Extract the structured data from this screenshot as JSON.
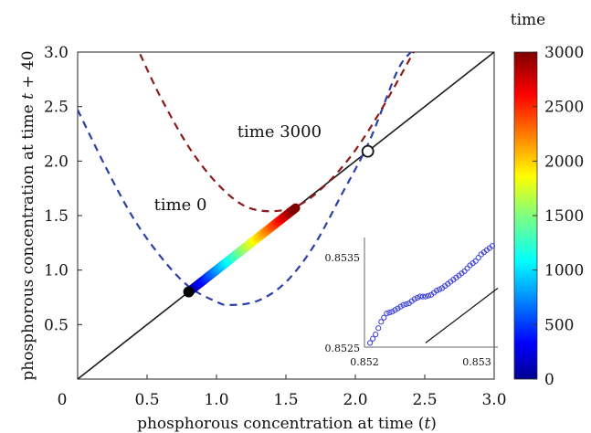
{
  "chart_data": {
    "type": "line",
    "xlabel_main": "phosphorous concentration at time",
    "xlabel_var": "t",
    "ylabel_main": "phosphorous concentration at time",
    "ylabel_var": "t",
    "ylabel_suffix": "+ 40",
    "xlim": [
      0,
      3.0
    ],
    "ylim": [
      0,
      3.0
    ],
    "x_ticks": [
      0.5,
      1.0,
      1.5,
      2.0,
      2.5,
      3.0
    ],
    "y_ticks": [
      0.5,
      1.0,
      1.5,
      2.0,
      2.5,
      3.0
    ],
    "origin_label": "0",
    "tick_labels": {
      "0.5": "0.5",
      "1.0": "1.0",
      "1.5": "1.5",
      "2.0": "2.0",
      "2.5": "2.5",
      "3.0": "3.0"
    },
    "grid": false,
    "identity_line": {
      "x": [
        0,
        3.0
      ],
      "y": [
        0,
        3.0
      ],
      "color": "#1a1a1a"
    },
    "series": [
      {
        "color": "#2b3fa8",
        "style": "dashed",
        "x": [
          0.0,
          0.2,
          0.4,
          0.6,
          0.8,
          1.0,
          1.1,
          1.3,
          1.5,
          1.7,
          1.9,
          2.1,
          2.3,
          2.4
        ],
        "y": [
          2.47,
          1.95,
          1.48,
          1.12,
          0.85,
          0.71,
          0.68,
          0.72,
          0.89,
          1.22,
          1.69,
          2.18,
          2.82,
          3.0
        ]
      },
      {
        "color": "#8b1a1a",
        "style": "dashed",
        "x": [
          0.45,
          0.6,
          0.8,
          1.0,
          1.2,
          1.4,
          1.6,
          1.8,
          2.0,
          2.2,
          2.42
        ],
        "y": [
          2.98,
          2.58,
          2.13,
          1.8,
          1.59,
          1.54,
          1.6,
          1.8,
          2.1,
          2.5,
          3.0
        ]
      }
    ],
    "trajectory": {
      "x_start": 0.8,
      "x_end": 1.57,
      "t_start": 0,
      "t_end": 3000
    },
    "fixed_points": [
      {
        "x": 0.8,
        "y": 0.8,
        "style": "filled"
      },
      {
        "x": 2.09,
        "y": 2.09,
        "style": "open"
      }
    ],
    "annotations": [
      {
        "text": "time 3000",
        "x": 1.15,
        "y": 2.22
      },
      {
        "text": "time 0",
        "x": 0.55,
        "y": 1.55
      }
    ],
    "colorbar": {
      "title": "time",
      "min": 0,
      "max": 3000,
      "ticks": [
        0,
        500,
        1000,
        1500,
        2000,
        2500,
        3000
      ],
      "colormap": "jet"
    },
    "inset": {
      "type": "scatter",
      "xlim": [
        0.852,
        0.8532
      ],
      "ylim": [
        0.8525,
        0.8538
      ],
      "x_ticks": [
        "0.852",
        "0.853"
      ],
      "y_ticks": [
        "0.8525",
        "0.8535"
      ],
      "marker_color": "#3a3fd8",
      "points_x": [
        0.85205,
        0.8521,
        0.85215,
        0.8522,
        0.85225,
        0.8523,
        0.85235,
        0.8524,
        0.85245,
        0.8525,
        0.85255,
        0.8526,
        0.85265,
        0.8527,
        0.85275,
        0.8528,
        0.85285,
        0.8529,
        0.85295,
        0.853,
        0.85305,
        0.8531,
        0.85315
      ],
      "points_y": [
        0.85255,
        0.85265,
        0.8528,
        0.8529,
        0.85292,
        0.85296,
        0.853,
        0.85302,
        0.85307,
        0.8531,
        0.8531,
        0.85312,
        0.85317,
        0.8532,
        0.85325,
        0.8533,
        0.85335,
        0.8534,
        0.85347,
        0.85352,
        0.8536,
        0.85365,
        0.8537
      ],
      "line_x": [
        0.8525,
        0.8532
      ],
      "line_y": [
        0.8525,
        0.8532
      ]
    }
  }
}
